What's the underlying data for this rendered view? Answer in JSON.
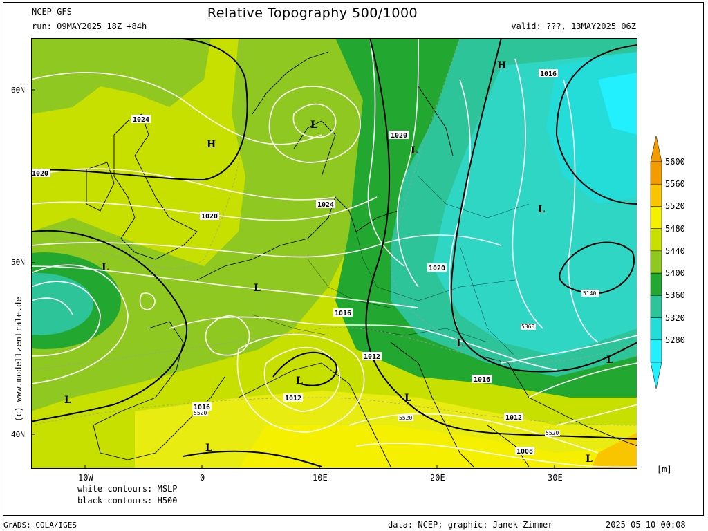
{
  "header": {
    "model": "NCEP GFS",
    "run": "run: 09MAY2025 18Z +84h",
    "title": "Relative Topography 500/1000",
    "valid": "valid: ???, 13MAY2025 06Z"
  },
  "legend": {
    "levels": [
      "5600",
      "5560",
      "5520",
      "5480",
      "5440",
      "5400",
      "5360",
      "5320",
      "5280"
    ],
    "colors": [
      "#f39c00",
      "#f9c400",
      "#f5f000",
      "#c8e000",
      "#8ec820",
      "#22a830",
      "#2ec49a",
      "#24dcd8",
      "#22f0ff"
    ],
    "unit": "[m]"
  },
  "axes": {
    "lat_labels": [
      "60N",
      "50N",
      "40N"
    ],
    "lon_labels": [
      "10W",
      "0",
      "10E",
      "20E",
      "30E"
    ]
  },
  "contour_notes": {
    "white": "white contours: MSLP",
    "black": "black contours: H500"
  },
  "map_labels": {
    "pressure_values": [
      "1024",
      "1020",
      "1020",
      "1024",
      "1020",
      "1020",
      "1016",
      "1012",
      "1016",
      "1012",
      "1016",
      "1012",
      "1008",
      "1016"
    ],
    "thickness_values": [
      "5140",
      "5360",
      "5520",
      "5520",
      "5520"
    ],
    "centers": [
      "H",
      "H",
      "L",
      "L",
      "L",
      "L",
      "L",
      "L",
      "L",
      "L",
      "L",
      "L",
      "L",
      "L"
    ]
  },
  "footer": {
    "left": "GrADS: COLA/IGES",
    "data": "data: NCEP; graphic: Janek Zimmer",
    "timestamp": "2025-05-10-00:08"
  },
  "side_credit": "(c) www.modellzentrale.de"
}
